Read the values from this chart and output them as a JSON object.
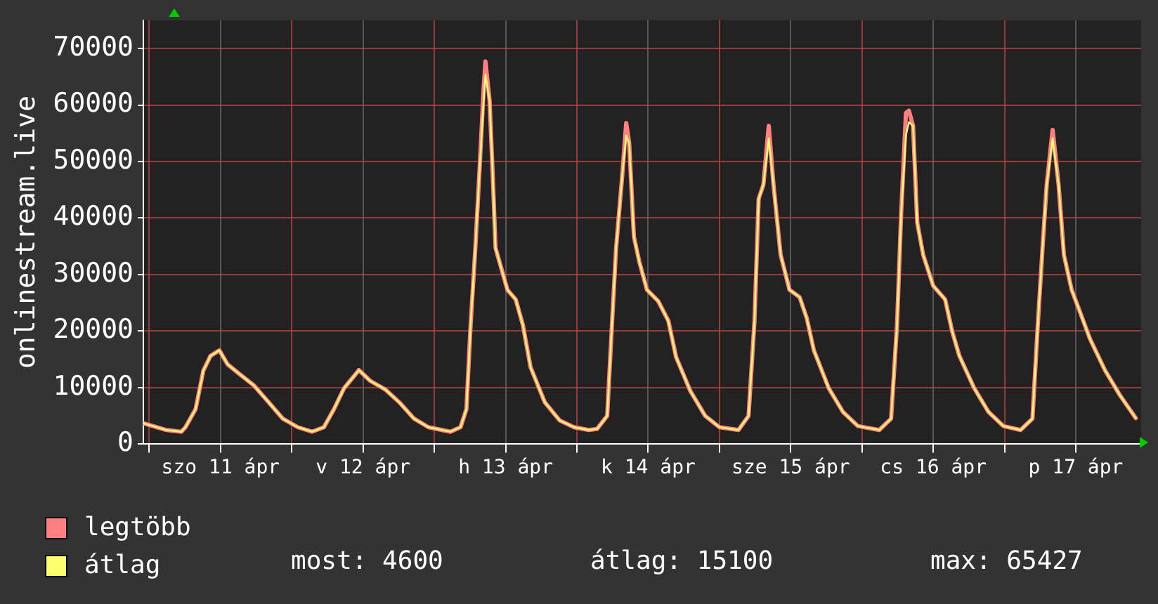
{
  "chart_data": {
    "type": "line",
    "ylabel": "onlinestream.live",
    "x": [
      "--04-10T23:00",
      "--04-11T02:54",
      "--04-11T05:24",
      "--04-11T06:06",
      "--04-11T07:48",
      "--04-11T09:06",
      "--04-11T10:18",
      "--04-11T11:48",
      "--04-11T13:12",
      "--04-11T15:12",
      "--04-11T17:36",
      "--04-11T20:06",
      "--04-11T22:30",
      "--04-12T01:00",
      "--04-12T03:24",
      "--04-12T05:24",
      "--04-12T07:06",
      "--04-12T08:48",
      "--04-12T11:18",
      "--04-12T13:12",
      "--04-12T15:42",
      "--04-12T18:06",
      "--04-12T20:36",
      "--04-12T23:00",
      "--04-13T02:42",
      "--04-13T04:24",
      "--04-13T05:24",
      "--04-13T06:06",
      "--04-13T06:54",
      "--04-13T07:36",
      "--04-13T08:18",
      "--04-13T08:36",
      "--04-13T09:18",
      "--04-13T09:48",
      "--04-13T10:18",
      "--04-13T11:18",
      "--04-13T12:18",
      "--04-13T13:42",
      "--04-13T14:54",
      "--04-13T16:12",
      "--04-13T18:36",
      "--04-13T21:06",
      "--04-13T23:30",
      "--04-14T02:00",
      "--04-14T03:24",
      "--04-14T05:06",
      "--04-14T05:54",
      "--04-14T06:36",
      "--04-14T07:36",
      "--04-14T08:18",
      "--04-14T08:48",
      "--04-14T09:36",
      "--04-14T10:30",
      "--04-14T11:48",
      "--04-14T13:42",
      "--04-14T15:24",
      "--04-14T16:42",
      "--04-14T19:06",
      "--04-14T21:36",
      "--04-15T00:00",
      "--04-15T03:12",
      "--04-15T04:54",
      "--04-15T05:54",
      "--04-15T06:36",
      "--04-15T07:24",
      "--04-15T08:18",
      "--04-15T09:06",
      "--04-15T10:18",
      "--04-15T11:48",
      "--04-15T13:30",
      "--04-15T14:42",
      "--04-15T15:54",
      "--04-15T18:24",
      "--04-15T20:48",
      "--04-15T23:18",
      "--04-16T02:54",
      "--04-16T04:54",
      "--04-16T05:54",
      "--04-16T06:36",
      "--04-16T07:24",
      "--04-16T07:54",
      "--04-16T08:36",
      "--04-16T09:18",
      "--04-16T10:18",
      "--04-16T12:00",
      "--04-16T14:00",
      "--04-16T15:12",
      "--04-16T16:24",
      "--04-16T18:54",
      "--04-16T21:18",
      "--04-16T23:48",
      "--04-17T02:42",
      "--04-17T04:42",
      "--04-17T05:36",
      "--04-17T06:24",
      "--04-17T07:06",
      "--04-17T08:06",
      "--04-17T09:06",
      "--04-17T10:00",
      "--04-17T11:18",
      "--04-17T12:12",
      "--04-17T14:24",
      "--04-17T16:54",
      "--04-17T19:24",
      "--04-17T22:06"
    ],
    "series": [
      {
        "name": "legtöbb",
        "color": "#ff8080",
        "values": [
          3700,
          2500,
          2200,
          3000,
          6200,
          13000,
          15600,
          16600,
          14100,
          12400,
          10400,
          7400,
          4500,
          3000,
          2200,
          3000,
          6200,
          9900,
          13100,
          11200,
          9700,
          7400,
          4500,
          3000,
          2200,
          3000,
          6200,
          21000,
          34700,
          48400,
          63000,
          67700,
          60800,
          48400,
          34700,
          31000,
          27300,
          25600,
          21100,
          13600,
          7400,
          4200,
          3000,
          2500,
          2700,
          5000,
          21100,
          34700,
          47100,
          56800,
          53300,
          36700,
          32300,
          27300,
          25300,
          21800,
          15400,
          9400,
          5000,
          3000,
          2500,
          5000,
          21800,
          43400,
          45900,
          56300,
          45900,
          33500,
          27300,
          26000,
          22300,
          16600,
          9900,
          5700,
          3200,
          2500,
          4500,
          21100,
          40900,
          58600,
          59000,
          56300,
          39200,
          33500,
          28000,
          25600,
          19900,
          15600,
          9900,
          5700,
          3200,
          2500,
          4500,
          21100,
          34700,
          45900,
          55600,
          45900,
          33500,
          27300,
          24800,
          18600,
          13100,
          8700,
          4600
        ]
      },
      {
        "name": "átlag",
        "color": "#ffff70",
        "values": [
          3700,
          2500,
          2200,
          3000,
          6200,
          13000,
          15600,
          16600,
          14100,
          12400,
          10400,
          7400,
          4500,
          3000,
          2200,
          3000,
          6200,
          9900,
          13100,
          11200,
          9700,
          7400,
          4500,
          3000,
          2200,
          3000,
          6200,
          21000,
          34700,
          48400,
          60800,
          65400,
          60800,
          48400,
          34700,
          31000,
          27300,
          25600,
          21100,
          13600,
          7400,
          4200,
          3000,
          2500,
          2700,
          5000,
          21100,
          34700,
          47100,
          54600,
          53300,
          36700,
          32300,
          27300,
          25300,
          21800,
          15400,
          9400,
          5000,
          3000,
          2500,
          5000,
          21800,
          43400,
          45900,
          54100,
          45900,
          33500,
          27300,
          26000,
          22300,
          16600,
          9900,
          5700,
          3200,
          2500,
          4500,
          21100,
          40900,
          54600,
          57000,
          56300,
          39200,
          33500,
          28000,
          25600,
          19900,
          15600,
          9900,
          5700,
          3200,
          2500,
          4500,
          21100,
          34700,
          45900,
          54100,
          45900,
          33500,
          27300,
          24800,
          18600,
          13100,
          8700,
          4600
        ]
      }
    ],
    "xlim": [
      "--04-10T23:00",
      "--04-17T23:00"
    ],
    "xticks": [
      {
        "value": "--04-11T00:00",
        "label": null
      },
      {
        "value": "--04-11T12:00",
        "label": "szo 11 ápr"
      },
      {
        "value": "--04-12T00:00",
        "label": null
      },
      {
        "value": "--04-12T12:00",
        "label": "v 12 ápr"
      },
      {
        "value": "--04-13T00:00",
        "label": null
      },
      {
        "value": "--04-13T12:00",
        "label": "h 13 ápr"
      },
      {
        "value": "--04-14T00:00",
        "label": null
      },
      {
        "value": "--04-14T12:00",
        "label": "k 14 ápr"
      },
      {
        "value": "--04-15T00:00",
        "label": null
      },
      {
        "value": "--04-15T12:00",
        "label": "sze 15 ápr"
      },
      {
        "value": "--04-16T00:00",
        "label": null
      },
      {
        "value": "--04-16T12:00",
        "label": "cs 16 ápr"
      },
      {
        "value": "--04-17T00:00",
        "label": null
      },
      {
        "value": "--04-17T12:00",
        "label": "p 17 ápr"
      }
    ],
    "ylim": [
      0,
      75000
    ],
    "yticks": [
      0,
      10000,
      20000,
      30000,
      40000,
      50000,
      60000,
      70000
    ],
    "grid": true,
    "legend": "bottom left",
    "marker": "none",
    "line_style": "solid",
    "annotations": [
      "most: 4600",
      "átlag: 15100",
      "max: 65427"
    ]
  }
}
